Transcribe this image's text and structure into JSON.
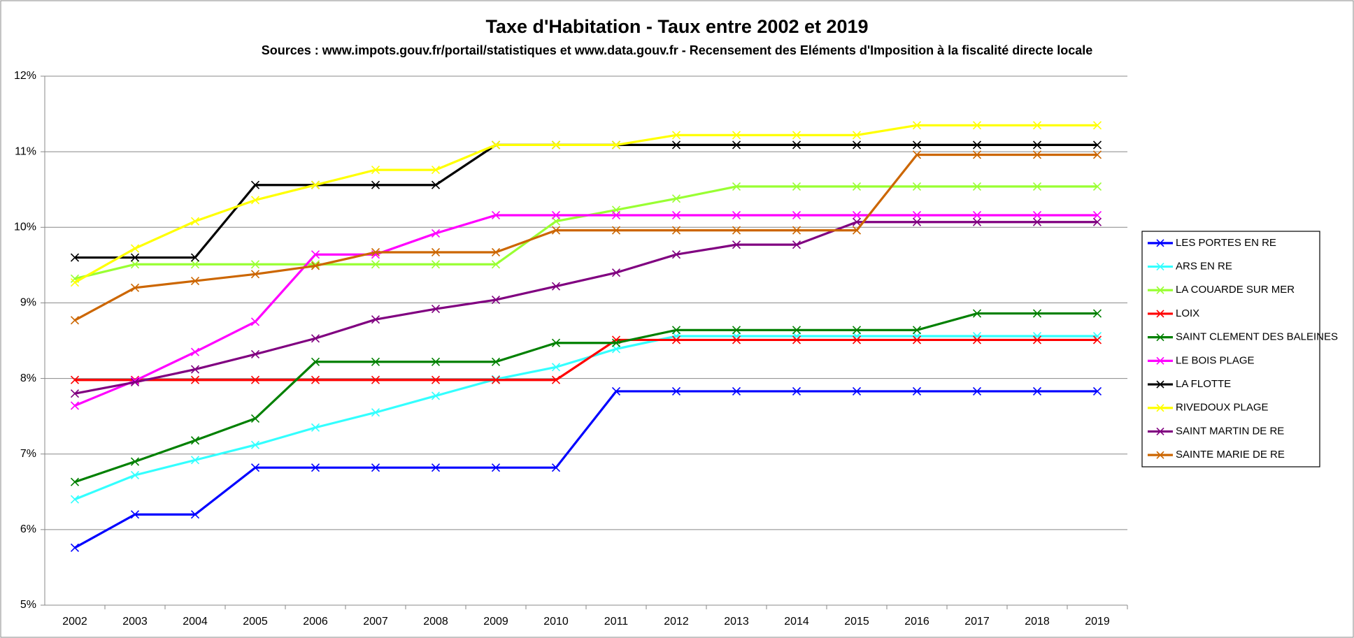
{
  "chart_data": {
    "type": "line",
    "title": "Taxe d'Habitation - Taux entre 2002 et 2019",
    "subtitle": "Sources : www.impots.gouv.fr/portail/statistiques et www.data.gouv.fr - Recensement des Eléments d'Imposition à la fiscalité directe locale",
    "categories": [
      "2002",
      "2003",
      "2004",
      "2005",
      "2006",
      "2007",
      "2008",
      "2009",
      "2010",
      "2011",
      "2012",
      "2013",
      "2014",
      "2015",
      "2016",
      "2017",
      "2018",
      "2019"
    ],
    "ylim": [
      5,
      12
    ],
    "yticks": [
      {
        "value": 5,
        "label": "5%"
      },
      {
        "value": 6,
        "label": "6%"
      },
      {
        "value": 7,
        "label": "7%"
      },
      {
        "value": 8,
        "label": "8%"
      },
      {
        "value": 9,
        "label": "9%"
      },
      {
        "value": 10,
        "label": "10%"
      },
      {
        "value": 11,
        "label": "11%"
      },
      {
        "value": 12,
        "label": "12%"
      }
    ],
    "grid": true,
    "legend": "right",
    "series": [
      {
        "name": "LES PORTES EN RE",
        "color": "#0000ff",
        "values": [
          5.76,
          6.2,
          6.2,
          6.82,
          6.82,
          6.82,
          6.82,
          6.82,
          6.82,
          7.83,
          7.83,
          7.83,
          7.83,
          7.83,
          7.83,
          7.83,
          7.83,
          7.83
        ]
      },
      {
        "name": "ARS EN RE",
        "color": "#33ffff",
        "values": [
          6.4,
          6.72,
          6.92,
          7.12,
          7.35,
          7.55,
          7.77,
          7.99,
          8.15,
          8.39,
          8.56,
          8.56,
          8.56,
          8.56,
          8.56,
          8.56,
          8.56,
          8.56
        ]
      },
      {
        "name": "LA COUARDE SUR MER",
        "color": "#99ff33",
        "values": [
          9.32,
          9.51,
          9.51,
          9.51,
          9.51,
          9.51,
          9.51,
          9.51,
          10.08,
          10.23,
          10.38,
          10.54,
          10.54,
          10.54,
          10.54,
          10.54,
          10.54,
          10.54
        ]
      },
      {
        "name": "LOIX",
        "color": "#ff0000",
        "values": [
          7.98,
          7.98,
          7.98,
          7.98,
          7.98,
          7.98,
          7.98,
          7.98,
          7.98,
          8.51,
          8.51,
          8.51,
          8.51,
          8.51,
          8.51,
          8.51,
          8.51,
          8.51
        ]
      },
      {
        "name": "SAINT CLEMENT DES BALEINES",
        "color": "#008000",
        "values": [
          6.63,
          6.9,
          7.18,
          7.47,
          8.22,
          8.22,
          8.22,
          8.22,
          8.47,
          8.47,
          8.64,
          8.64,
          8.64,
          8.64,
          8.64,
          8.86,
          8.86,
          8.86
        ]
      },
      {
        "name": "LE BOIS PLAGE",
        "color": "#ff00ff",
        "values": [
          7.64,
          7.97,
          8.35,
          8.75,
          9.64,
          9.64,
          9.92,
          10.16,
          10.16,
          10.16,
          10.16,
          10.16,
          10.16,
          10.16,
          10.16,
          10.16,
          10.16,
          10.16
        ]
      },
      {
        "name": "LA FLOTTE",
        "color": "#000000",
        "values": [
          9.6,
          9.6,
          9.6,
          10.56,
          10.56,
          10.56,
          10.56,
          11.09,
          11.09,
          11.09,
          11.09,
          11.09,
          11.09,
          11.09,
          11.09,
          11.09,
          11.09,
          11.09
        ]
      },
      {
        "name": "RIVEDOUX PLAGE",
        "color": "#ffff00",
        "values": [
          9.27,
          9.72,
          10.08,
          10.36,
          10.56,
          10.76,
          10.76,
          11.09,
          11.09,
          11.09,
          11.22,
          11.22,
          11.22,
          11.22,
          11.35,
          11.35,
          11.35,
          11.35
        ]
      },
      {
        "name": "SAINT MARTIN DE RE",
        "color": "#800080",
        "values": [
          7.8,
          7.95,
          8.12,
          8.32,
          8.53,
          8.78,
          8.92,
          9.04,
          9.22,
          9.4,
          9.64,
          9.77,
          9.77,
          10.07,
          10.07,
          10.07,
          10.07,
          10.07
        ]
      },
      {
        "name": "SAINTE MARIE DE RE",
        "color": "#cc6600",
        "values": [
          8.77,
          9.2,
          9.29,
          9.38,
          9.49,
          9.67,
          9.67,
          9.67,
          9.96,
          9.96,
          9.96,
          9.96,
          9.96,
          9.96,
          10.96,
          10.96,
          10.96,
          10.96
        ]
      }
    ]
  }
}
